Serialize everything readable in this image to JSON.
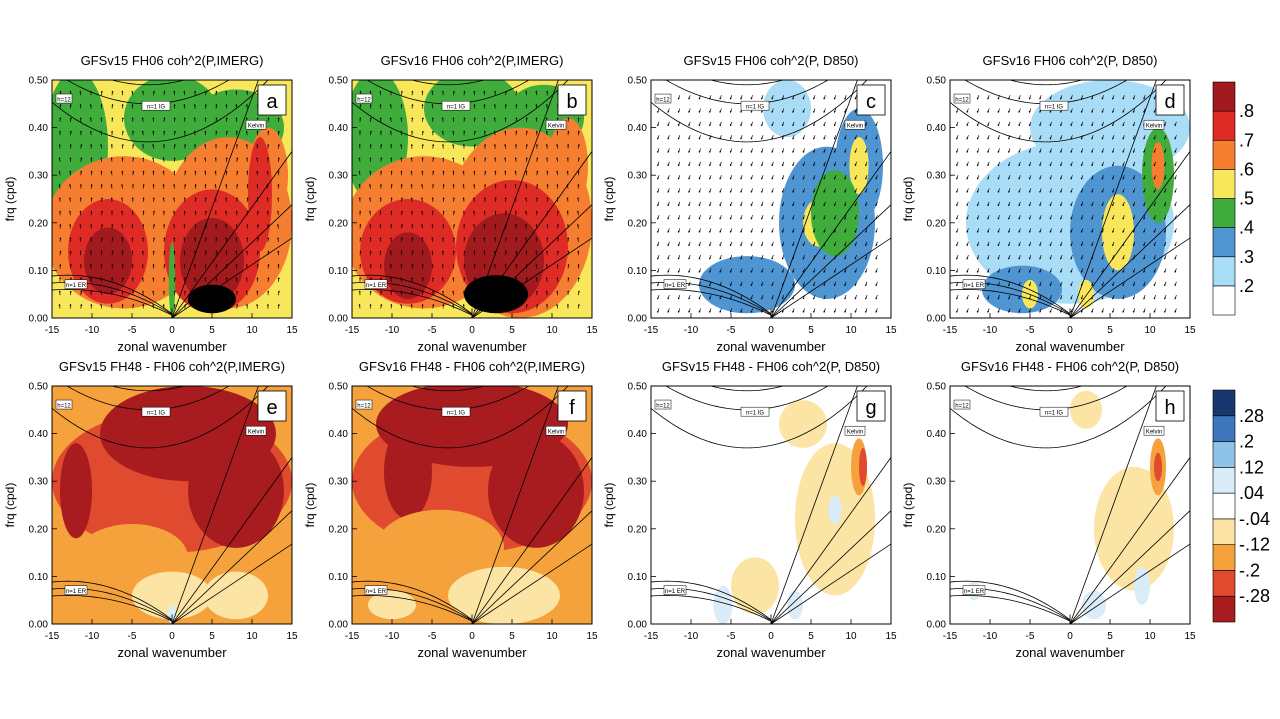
{
  "chart_data": {
    "type": "heatmap",
    "panels": [
      {
        "id": "a",
        "title": "GFSv15 FH06 coh^2(P,IMERG)",
        "panel_label": "a",
        "xlabel": "zonal wavenumber",
        "ylabel": "frq (cpd)",
        "xlim": [
          -15,
          15
        ],
        "ylim": [
          0,
          0.5
        ],
        "xticks": [
          "-15",
          "-10",
          "-5",
          "0",
          "5",
          "10",
          "15"
        ],
        "yticks": [
          "0.00",
          "0.10",
          "0.20",
          "0.30",
          "0.40",
          "0.50"
        ],
        "curve_labels": [
          "h=12",
          "n=1 IG",
          "Kelvin",
          "n=1 ER"
        ],
        "vectors": true,
        "colorbar": "coh",
        "background_level": 4,
        "blobs": [
          {
            "x": -12,
            "y": 0.36,
            "rx": 4,
            "ry": 0.16,
            "level": 3
          },
          {
            "x": 0,
            "y": 0.42,
            "rx": 6,
            "ry": 0.09,
            "level": 3
          },
          {
            "x": 8,
            "y": 0.4,
            "rx": 6,
            "ry": 0.08,
            "level": 3
          },
          {
            "x": -6,
            "y": 0.18,
            "rx": 10,
            "ry": 0.16,
            "level": 5
          },
          {
            "x": 7,
            "y": 0.2,
            "rx": 8,
            "ry": 0.18,
            "level": 5
          },
          {
            "x": 12,
            "y": 0.3,
            "rx": 2.5,
            "ry": 0.1,
            "level": 5
          },
          {
            "x": -8,
            "y": 0.14,
            "rx": 5,
            "ry": 0.11,
            "level": 6
          },
          {
            "x": 5,
            "y": 0.14,
            "rx": 6,
            "ry": 0.13,
            "level": 6
          },
          {
            "x": 11,
            "y": 0.26,
            "rx": 1.5,
            "ry": 0.12,
            "level": 6
          },
          {
            "x": -8,
            "y": 0.12,
            "rx": 3,
            "ry": 0.07,
            "level": 7
          },
          {
            "x": 5,
            "y": 0.12,
            "rx": 4,
            "ry": 0.09,
            "level": 7
          },
          {
            "x": 5,
            "y": 0.04,
            "rx": 3,
            "ry": 0.03,
            "level": 8
          },
          {
            "x": 0,
            "y": 0.08,
            "rx": 0.4,
            "ry": 0.08,
            "level": 3
          }
        ]
      },
      {
        "id": "b",
        "title": "GFSv16 FH06 coh^2(P,IMERG)",
        "panel_label": "b",
        "xlabel": "zonal wavenumber",
        "ylabel": "frq (cpd)",
        "xlim": [
          -15,
          15
        ],
        "ylim": [
          0,
          0.5
        ],
        "xticks": [
          "-15",
          "-10",
          "-5",
          "0",
          "5",
          "10",
          "15"
        ],
        "yticks": [
          "0.00",
          "0.10",
          "0.20",
          "0.30",
          "0.40",
          "0.50"
        ],
        "curve_labels": [
          "h=12",
          "n=1 IG",
          "Kelvin",
          "n=1 ER"
        ],
        "vectors": true,
        "colorbar": "coh",
        "background_level": 4,
        "blobs": [
          {
            "x": -12,
            "y": 0.38,
            "rx": 4,
            "ry": 0.14,
            "level": 3
          },
          {
            "x": 0,
            "y": 0.44,
            "rx": 6,
            "ry": 0.08,
            "level": 3
          },
          {
            "x": 9,
            "y": 0.42,
            "rx": 5,
            "ry": 0.07,
            "level": 3
          },
          {
            "x": -6,
            "y": 0.18,
            "rx": 10,
            "ry": 0.16,
            "level": 5
          },
          {
            "x": 6,
            "y": 0.2,
            "rx": 9,
            "ry": 0.2,
            "level": 5
          },
          {
            "x": 12,
            "y": 0.32,
            "rx": 2.5,
            "ry": 0.1,
            "level": 5
          },
          {
            "x": -8,
            "y": 0.14,
            "rx": 6,
            "ry": 0.11,
            "level": 6
          },
          {
            "x": 5,
            "y": 0.15,
            "rx": 7,
            "ry": 0.14,
            "level": 6
          },
          {
            "x": -8,
            "y": 0.11,
            "rx": 3,
            "ry": 0.07,
            "level": 7
          },
          {
            "x": 4,
            "y": 0.12,
            "rx": 5,
            "ry": 0.1,
            "level": 7
          },
          {
            "x": 3,
            "y": 0.05,
            "rx": 4,
            "ry": 0.04,
            "level": 8
          }
        ]
      },
      {
        "id": "c",
        "title": "GFSv15 FH06 coh^2(P, D850)",
        "panel_label": "c",
        "xlabel": "zonal wavenumber",
        "ylabel": "frq (cpd)",
        "xlim": [
          -15,
          15
        ],
        "ylim": [
          0,
          0.5
        ],
        "xticks": [
          "-15",
          "-10",
          "-5",
          "0",
          "5",
          "10",
          "15"
        ],
        "yticks": [
          "0.00",
          "0.10",
          "0.20",
          "0.30",
          "0.40",
          "0.50"
        ],
        "curve_labels": [
          "h=12",
          "n=1 IG",
          "Kelvin",
          "n=1 ER"
        ],
        "vectors": true,
        "colorbar": "coh",
        "background_level": 0,
        "blobs": [
          {
            "x": 7,
            "y": 0.2,
            "rx": 6,
            "ry": 0.16,
            "level": 2
          },
          {
            "x": -3,
            "y": 0.07,
            "rx": 6,
            "ry": 0.06,
            "level": 2
          },
          {
            "x": 11,
            "y": 0.32,
            "rx": 3,
            "ry": 0.12,
            "level": 2
          },
          {
            "x": 2,
            "y": 0.44,
            "rx": 3,
            "ry": 0.06,
            "level": 1
          },
          {
            "x": 6,
            "y": 0.2,
            "rx": 2,
            "ry": 0.05,
            "level": 4
          },
          {
            "x": 11,
            "y": 0.32,
            "rx": 1.2,
            "ry": 0.06,
            "level": 4
          },
          {
            "x": 8,
            "y": 0.22,
            "rx": 3,
            "ry": 0.09,
            "level": 3
          }
        ]
      },
      {
        "id": "d",
        "title": "GFSv16 FH06 coh^2(P, D850)",
        "panel_label": "d",
        "xlabel": "zonal wavenumber",
        "ylabel": "frq (cpd)",
        "xlim": [
          -15,
          15
        ],
        "ylim": [
          0,
          0.5
        ],
        "xticks": [
          "-15",
          "-10",
          "-5",
          "0",
          "5",
          "10",
          "15"
        ],
        "yticks": [
          "0.00",
          "0.10",
          "0.20",
          "0.30",
          "0.40",
          "0.50"
        ],
        "curve_labels": [
          "h=12",
          "n=1 IG",
          "Kelvin",
          "n=1 ER"
        ],
        "vectors": true,
        "colorbar": "coh",
        "background_level": 0,
        "blobs": [
          {
            "x": 0,
            "y": 0.2,
            "rx": 13,
            "ry": 0.17,
            "level": 1
          },
          {
            "x": 5,
            "y": 0.4,
            "rx": 10,
            "ry": 0.1,
            "level": 1
          },
          {
            "x": 6,
            "y": 0.18,
            "rx": 6,
            "ry": 0.14,
            "level": 2
          },
          {
            "x": -6,
            "y": 0.06,
            "rx": 5,
            "ry": 0.05,
            "level": 2
          },
          {
            "x": 11,
            "y": 0.3,
            "rx": 2,
            "ry": 0.1,
            "level": 3
          },
          {
            "x": 6,
            "y": 0.18,
            "rx": 2,
            "ry": 0.08,
            "level": 4
          },
          {
            "x": 11,
            "y": 0.32,
            "rx": 0.8,
            "ry": 0.05,
            "level": 5
          },
          {
            "x": -5,
            "y": 0.05,
            "rx": 1,
            "ry": 0.03,
            "level": 4
          },
          {
            "x": 2,
            "y": 0.05,
            "rx": 1,
            "ry": 0.03,
            "level": 4
          }
        ]
      },
      {
        "id": "e",
        "title": "GFSv15 FH48 - FH06 coh^2(P,IMERG)",
        "panel_label": "e",
        "xlabel": "zonal wavenumber",
        "ylabel": "frq (cpd)",
        "xlim": [
          -15,
          15
        ],
        "ylim": [
          0,
          0.5
        ],
        "xticks": [
          "-15",
          "-10",
          "-5",
          "0",
          "5",
          "10",
          "15"
        ],
        "yticks": [
          "0.00",
          "0.10",
          "0.20",
          "0.30",
          "0.40",
          "0.50"
        ],
        "curve_labels": [
          "h=12",
          "n=1 IG",
          "Kelvin",
          "n=1 ER"
        ],
        "vectors": false,
        "colorbar": "diff",
        "background_level": 2,
        "blobs": [
          {
            "x": 0,
            "y": 0.3,
            "rx": 15,
            "ry": 0.15,
            "level": 1
          },
          {
            "x": 2,
            "y": 0.4,
            "rx": 11,
            "ry": 0.1,
            "level": 0
          },
          {
            "x": 8,
            "y": 0.28,
            "rx": 6,
            "ry": 0.12,
            "level": 0
          },
          {
            "x": -12,
            "y": 0.28,
            "rx": 2,
            "ry": 0.1,
            "level": 0
          },
          {
            "x": -5,
            "y": 0.14,
            "rx": 7,
            "ry": 0.07,
            "level": 2
          },
          {
            "x": 0,
            "y": 0.06,
            "rx": 5,
            "ry": 0.05,
            "level": 3
          },
          {
            "x": 8,
            "y": 0.06,
            "rx": 4,
            "ry": 0.05,
            "level": 3
          },
          {
            "x": 0,
            "y": 0.02,
            "rx": 0.5,
            "ry": 0.02,
            "level": 5
          }
        ]
      },
      {
        "id": "f",
        "title": "GFSv16 FH48 - FH06 coh^2(P,IMERG)",
        "panel_label": "f",
        "xlabel": "zonal wavenumber",
        "ylabel": "frq (cpd)",
        "xlim": [
          -15,
          15
        ],
        "ylim": [
          0,
          0.5
        ],
        "xticks": [
          "-15",
          "-10",
          "-5",
          "0",
          "5",
          "10",
          "15"
        ],
        "yticks": [
          "0.00",
          "0.10",
          "0.20",
          "0.30",
          "0.40",
          "0.50"
        ],
        "curve_labels": [
          "h=12",
          "n=1 IG",
          "Kelvin",
          "n=1 ER"
        ],
        "vectors": false,
        "colorbar": "diff",
        "background_level": 2,
        "blobs": [
          {
            "x": 0,
            "y": 0.3,
            "rx": 15,
            "ry": 0.15,
            "level": 1
          },
          {
            "x": 0,
            "y": 0.42,
            "rx": 12,
            "ry": 0.09,
            "level": 0
          },
          {
            "x": 8,
            "y": 0.28,
            "rx": 6,
            "ry": 0.12,
            "level": 0
          },
          {
            "x": -8,
            "y": 0.32,
            "rx": 3,
            "ry": 0.1,
            "level": 0
          },
          {
            "x": -4,
            "y": 0.16,
            "rx": 8,
            "ry": 0.08,
            "level": 2
          },
          {
            "x": 4,
            "y": 0.06,
            "rx": 7,
            "ry": 0.06,
            "level": 3
          },
          {
            "x": -10,
            "y": 0.04,
            "rx": 3,
            "ry": 0.03,
            "level": 3
          }
        ]
      },
      {
        "id": "g",
        "title": "GFSv15 FH48 - FH06 coh^2(P, D850)",
        "panel_label": "g",
        "xlabel": "zonal wavenumber",
        "ylabel": "frq (cpd)",
        "xlim": [
          -15,
          15
        ],
        "ylim": [
          0,
          0.5
        ],
        "xticks": [
          "-15",
          "-10",
          "-5",
          "0",
          "5",
          "10",
          "15"
        ],
        "yticks": [
          "0.00",
          "0.10",
          "0.20",
          "0.30",
          "0.40",
          "0.50"
        ],
        "curve_labels": [
          "h=12",
          "n=1 IG",
          "Kelvin",
          "n=1 ER"
        ],
        "vectors": false,
        "colorbar": "diff",
        "background_level": 4,
        "blobs": [
          {
            "x": 8,
            "y": 0.22,
            "rx": 5,
            "ry": 0.16,
            "level": 3
          },
          {
            "x": 4,
            "y": 0.42,
            "rx": 3,
            "ry": 0.05,
            "level": 3
          },
          {
            "x": -2,
            "y": 0.08,
            "rx": 3,
            "ry": 0.06,
            "level": 3
          },
          {
            "x": 11,
            "y": 0.33,
            "rx": 1,
            "ry": 0.06,
            "level": 2
          },
          {
            "x": 11.5,
            "y": 0.33,
            "rx": 0.5,
            "ry": 0.04,
            "level": 1
          },
          {
            "x": -6,
            "y": 0.04,
            "rx": 1.2,
            "ry": 0.04,
            "level": 5
          },
          {
            "x": 3,
            "y": 0.04,
            "rx": 1,
            "ry": 0.03,
            "level": 5
          },
          {
            "x": 8,
            "y": 0.24,
            "rx": 0.8,
            "ry": 0.03,
            "level": 5
          }
        ]
      },
      {
        "id": "h",
        "title": "GFSv16 FH48 - FH06 coh^2(P, D850)",
        "panel_label": "h",
        "xlabel": "zonal wavenumber",
        "ylabel": "frq (cpd)",
        "xlim": [
          -15,
          15
        ],
        "ylim": [
          0,
          0.5
        ],
        "xticks": [
          "-15",
          "-10",
          "-5",
          "0",
          "5",
          "10",
          "15"
        ],
        "yticks": [
          "0.00",
          "0.10",
          "0.20",
          "0.30",
          "0.40",
          "0.50"
        ],
        "curve_labels": [
          "h=12",
          "n=1 IG",
          "Kelvin",
          "n=1 ER"
        ],
        "vectors": false,
        "colorbar": "diff",
        "background_level": 4,
        "blobs": [
          {
            "x": 8,
            "y": 0.2,
            "rx": 5,
            "ry": 0.13,
            "level": 3
          },
          {
            "x": 2,
            "y": 0.45,
            "rx": 2,
            "ry": 0.04,
            "level": 3
          },
          {
            "x": 11,
            "y": 0.33,
            "rx": 1,
            "ry": 0.06,
            "level": 2
          },
          {
            "x": 11,
            "y": 0.33,
            "rx": 0.5,
            "ry": 0.03,
            "level": 1
          },
          {
            "x": 3,
            "y": 0.04,
            "rx": 1.5,
            "ry": 0.03,
            "level": 5
          },
          {
            "x": 9,
            "y": 0.08,
            "rx": 1,
            "ry": 0.04,
            "level": 5
          },
          {
            "x": -12,
            "y": 0.07,
            "rx": 0.8,
            "ry": 0.02,
            "level": 5
          }
        ]
      }
    ],
    "colorbars": {
      "coh": {
        "labels": [
          ".2",
          ".3",
          ".4",
          ".5",
          ".6",
          ".7",
          ".8"
        ],
        "colors": [
          "#ffffff",
          "#a9dcf7",
          "#4f95d1",
          "#3fac3c",
          "#f8e65b",
          "#f57e31",
          "#df2b26",
          "#a01a1e"
        ]
      },
      "diff": {
        "labels": [
          ".28",
          ".2",
          ".12",
          ".04",
          "-.04",
          "-.12",
          "-.2",
          "-.28"
        ],
        "colors": [
          "#a81c1f",
          "#e04a2e",
          "#f6a23c",
          "#fbe4a4",
          "#ffffff",
          "#d9ecf8",
          "#8fc2e8",
          "#3f77be",
          "#19376f"
        ]
      }
    }
  }
}
